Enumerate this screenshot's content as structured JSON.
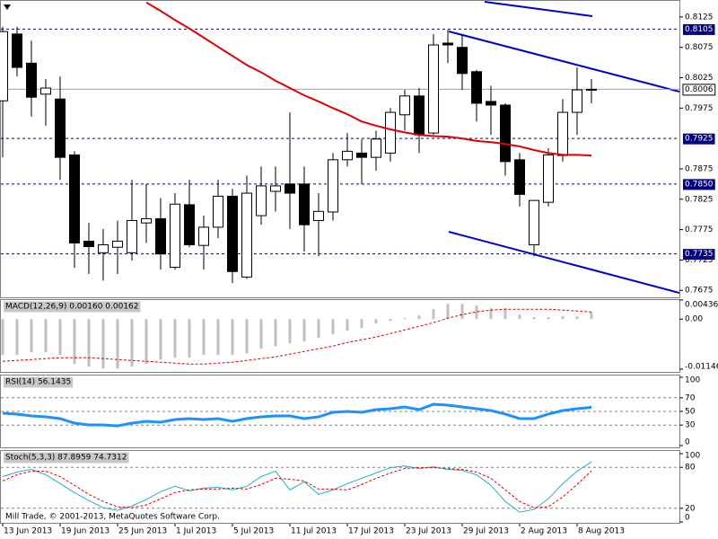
{
  "chart_data": [
    {
      "type": "candlestick",
      "categories": [
        "13 Jun 2013",
        null,
        null,
        null,
        "19 Jun 2013",
        null,
        null,
        null,
        "25 Jun 2013",
        null,
        null,
        null,
        "1 Jul 2013",
        null,
        null,
        null,
        "5 Jul 2013",
        null,
        null,
        null,
        "11 Jul 2013",
        null,
        null,
        null,
        "17 Jul 2013",
        null,
        null,
        null,
        "23 Jul 2013",
        null,
        null,
        null,
        "29 Jul 2013",
        null,
        null,
        null,
        "2 Aug 2013",
        null,
        null,
        null,
        "8 Aug 2013",
        null
      ],
      "open": [
        0.7987,
        0.8097,
        0.8049,
        0.7998,
        0.799,
        0.7898,
        0.7756,
        0.7737,
        0.7746,
        0.7737,
        0.7786,
        0.7793,
        0.7713,
        0.7816,
        0.7749,
        0.7779,
        0.783,
        0.7697,
        0.7798,
        0.7838,
        0.785,
        0.785,
        0.779,
        0.7804,
        0.789,
        0.7901,
        0.7894,
        0.7901,
        0.7964,
        0.7995,
        0.7934,
        0.8082,
        0.8075,
        0.8035,
        0.7986,
        0.798,
        0.789,
        0.775,
        0.782,
        0.7897,
        0.7968,
        0.8005
      ],
      "high": [
        0.8109,
        0.8109,
        0.8086,
        0.8023,
        0.8027,
        0.7904,
        0.7786,
        0.7776,
        0.779,
        0.7857,
        0.785,
        0.7827,
        0.7835,
        0.7857,
        0.7798,
        0.7857,
        0.7842,
        0.7864,
        0.7879,
        0.7879,
        0.7968,
        0.7879,
        0.7835,
        0.7901,
        0.7934,
        0.7924,
        0.7938,
        0.7975,
        0.8005,
        0.8008,
        0.8097,
        0.8104,
        0.8097,
        0.8038,
        0.8012,
        0.7983,
        0.7901,
        0.7824,
        0.7909,
        0.799,
        0.8042,
        0.8023
      ],
      "low": [
        0.7894,
        0.8027,
        0.7961,
        0.7946,
        0.7857,
        0.7712,
        0.7702,
        0.7691,
        0.7702,
        0.7724,
        0.7753,
        0.7709,
        0.7709,
        0.7746,
        0.7709,
        0.7761,
        0.7687,
        0.7694,
        0.7783,
        0.7805,
        0.7776,
        0.7739,
        0.7731,
        0.779,
        0.7879,
        0.785,
        0.7872,
        0.7887,
        0.7938,
        0.7901,
        0.7931,
        0.8049,
        0.8005,
        0.7953,
        0.7931,
        0.7864,
        0.7813,
        0.7731,
        0.7813,
        0.7887,
        0.7931,
        0.7983
      ],
      "close": [
        0.8101,
        0.8042,
        0.7993,
        0.8008,
        0.7894,
        0.7753,
        0.7747,
        0.775,
        0.7756,
        0.779,
        0.7793,
        0.7735,
        0.7817,
        0.775,
        0.7779,
        0.783,
        0.7706,
        0.7835,
        0.7847,
        0.7847,
        0.7835,
        0.7783,
        0.7805,
        0.789,
        0.7904,
        0.7894,
        0.7924,
        0.7968,
        0.7995,
        0.7931,
        0.8079,
        0.8079,
        0.8032,
        0.7983,
        0.798,
        0.7887,
        0.7833,
        0.7823,
        0.7898,
        0.7968,
        0.8005,
        0.8006
      ],
      "up_color": "#ffffff",
      "down_color": "#000000",
      "overlays": [
        {
          "color": "#e00000",
          "values": [
            null,
            null,
            null,
            null,
            null,
            null,
            null,
            null,
            null,
            null,
            0.8149,
            0.8135,
            0.812,
            0.8106,
            0.8091,
            0.8076,
            0.8061,
            0.8046,
            0.8034,
            0.802,
            0.8008,
            0.7996,
            0.7986,
            0.7975,
            0.7965,
            0.7953,
            0.7946,
            0.794,
            0.7935,
            0.7931,
            0.7929,
            0.7928,
            0.7925,
            0.7921,
            0.7919,
            0.7916,
            0.7912,
            0.7906,
            0.7901,
            0.7898,
            0.7898,
            0.7897
          ]
        }
      ],
      "levels": [
        0.8105,
        0.7925,
        {
          "value": 0.785,
          "label": "0.7850"
        },
        0.7735
      ],
      "level_color": "#000080",
      "last_price": 0.8006,
      "ylim": [
        0.7665,
        0.815
      ],
      "yticks": [
        0.7675,
        0.7725,
        0.7775,
        0.7825,
        0.7875,
        0.7975,
        0.8025,
        0.8075,
        0.8125
      ]
    },
    {
      "type": "bar",
      "title": "MACD(12,26,9) 0.00160 0.00162",
      "color": "#c0c0c0",
      "values": [
        -0.00822,
        -0.00822,
        -0.0076,
        -0.0076,
        -0.00822,
        -0.01028,
        -0.01089,
        -0.0113,
        -0.0113,
        -0.01089,
        -0.01028,
        -0.00925,
        -0.00884,
        -0.00884,
        -0.00822,
        -0.00822,
        -0.00822,
        -0.00781,
        -0.00678,
        -0.00617,
        -0.00555,
        -0.00514,
        -0.00432,
        -0.00349,
        -0.00267,
        -0.00206,
        -0.00103,
        -0.00041,
        0.00021,
        0.00082,
        0.00226,
        0.00349,
        0.00349,
        0.00308,
        0.00247,
        0.00247,
        0.00103,
        0.00041,
        0.00041,
        0.00062,
        0.00062,
        0.0016
      ],
      "series": [
        {
          "color": "#e00000",
          "dash": true,
          "values": [
            -0.00966,
            -0.00945,
            -0.00925,
            -0.00904,
            -0.00884,
            -0.00884,
            -0.00884,
            -0.00904,
            -0.00925,
            -0.00945,
            -0.00966,
            -0.00986,
            -0.01007,
            -0.01028,
            -0.01028,
            -0.01007,
            -0.00986,
            -0.00945,
            -0.00904,
            -0.00863,
            -0.00801,
            -0.0074,
            -0.00678,
            -0.00617,
            -0.00534,
            -0.00473,
            -0.00411,
            -0.00329,
            -0.00247,
            -0.00164,
            -0.00082,
            0.00021,
            0.00103,
            0.00164,
            0.00206,
            0.00226,
            0.00226,
            0.00226,
            0.00226,
            0.00206,
            0.00185,
            0.00162
          ]
        }
      ],
      "ylim": [
        -0.01146,
        0.00436
      ],
      "yticks": [
        -0.01146,
        {
          "value": 0,
          "label": "0.00"
        },
        0.00436
      ],
      "grid": false
    },
    {
      "type": "line",
      "title": "RSI(14) 56.1435",
      "series": [
        {
          "color": "#1e90ff",
          "width": 3,
          "values": [
            47.4,
            46.1,
            43.4,
            42.1,
            39.5,
            32.9,
            30.3,
            30.3,
            28.9,
            32.9,
            35.5,
            34.2,
            38.2,
            39.5,
            38.2,
            39.5,
            35.5,
            39.5,
            42.1,
            43.4,
            43.4,
            39.5,
            42.1,
            48.7,
            50,
            48.7,
            52.6,
            53.9,
            56.6,
            52.6,
            60.5,
            59.2,
            56.6,
            53.9,
            51.3,
            46.1,
            39.5,
            39.5,
            46.1,
            51.3,
            53.9,
            56.1435
          ]
        }
      ],
      "ylim": [
        0,
        100
      ],
      "yticks": [
        0,
        30,
        50,
        70,
        100
      ],
      "grid": true
    },
    {
      "type": "line",
      "title": "Stoch(5,3,3) 87.8959 74.7312",
      "series": [
        {
          "color": "#20b2c8",
          "width": 1,
          "values": [
            66.5,
            73,
            76.9,
            69.1,
            56.1,
            43,
            31.3,
            20.9,
            16.9,
            23.5,
            32.6,
            44.3,
            52.2,
            45.6,
            49.5,
            50.8,
            46.9,
            52.2,
            66.5,
            74.3,
            46.9,
            58.7,
            40.4,
            46.9,
            56.1,
            63.9,
            71.7,
            79.5,
            82.1,
            78.2,
            80.8,
            76.9,
            75.6,
            69.1,
            53.5,
            30,
            14.3,
            18.3,
            33.9,
            56.1,
            74.3,
            87.8959
          ]
        },
        {
          "color": "#e00000",
          "width": 1,
          "dash": true,
          "values": [
            60,
            69.1,
            74.3,
            74.3,
            66.5,
            53.5,
            40.4,
            30,
            22.2,
            20.9,
            24.8,
            33.9,
            43,
            46.9,
            48.2,
            48.2,
            49.5,
            48.2,
            54.8,
            63.9,
            62.6,
            60,
            48.2,
            48.2,
            46.9,
            54.8,
            63.9,
            71.7,
            78.2,
            79.5,
            79.5,
            78.2,
            76.9,
            73,
            63.9,
            46.9,
            30,
            20.9,
            22.2,
            36.5,
            54.8,
            74.7312
          ]
        }
      ],
      "ylim": [
        0,
        100
      ],
      "yticks": [
        0,
        20,
        80,
        100
      ],
      "grid": true
    }
  ],
  "watermark": "Mill Trade, © 2001-2013, MetaQuotes Software Corp."
}
